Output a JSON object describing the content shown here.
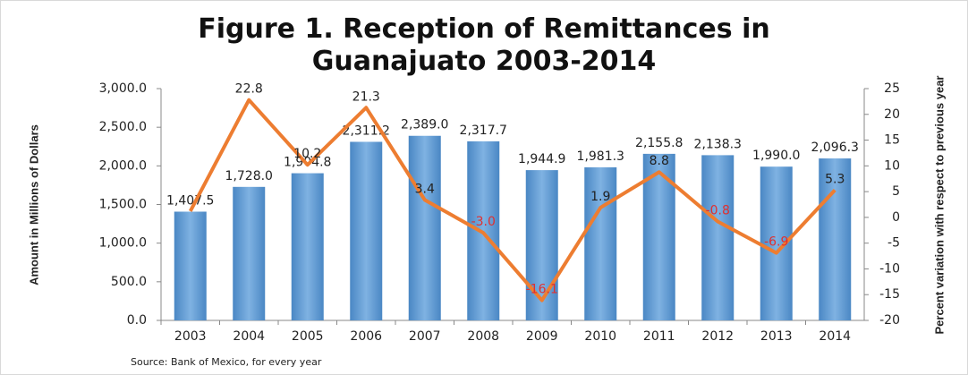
{
  "chart_data": {
    "type": "bar-line",
    "title": "Figure 1. Reception of Remittances in Guanajuato 2003-2014",
    "y_label": "Amount in Millions of Dollars",
    "y2_label": "Percent variation with respect to previous year",
    "source": "Source:  Bank of Mexico, for every year",
    "categories": [
      "2003",
      "2004",
      "2005",
      "2006",
      "2007",
      "2008",
      "2009",
      "2010",
      "2011",
      "2012",
      "2013",
      "2014"
    ],
    "series": [
      {
        "type": "bar",
        "color": "#5b9bd5",
        "values": [
          1407.5,
          1728.0,
          1904.8,
          2311.2,
          2389.0,
          2317.7,
          1944.9,
          1981.3,
          2155.8,
          2138.3,
          1990.0,
          2096.3
        ],
        "value_labels": [
          "1,407.5",
          "1,728.0",
          "1,904.8",
          "2,311.2",
          "2,389.0",
          "2,317.7",
          "1,944.9",
          "1,981.3",
          "2,155.8",
          "2,138.3",
          "1,990.0",
          "2,096.3"
        ]
      },
      {
        "type": "line",
        "axis": "y2",
        "color": "#ed7d31",
        "values": [
          1.2,
          22.8,
          10.2,
          21.3,
          3.4,
          -3.0,
          -16.1,
          1.9,
          8.8,
          -0.8,
          -6.9,
          5.3
        ],
        "value_labels": [
          null,
          "22.8",
          "10.2",
          "21.3",
          "3.4",
          "-3.0",
          "-16.1",
          "1.9",
          "8.8",
          "-0.8",
          "-6.9",
          "5.3"
        ]
      }
    ],
    "ylim": [
      0,
      3000
    ],
    "yticks": [
      {
        "value": 0,
        "label": "0.0"
      },
      {
        "value": 500,
        "label": "500.0"
      },
      {
        "value": 1000,
        "label": "1,000.0"
      },
      {
        "value": 1500,
        "label": "1,500.0"
      },
      {
        "value": 2000,
        "label": "2,000.0"
      },
      {
        "value": 2500,
        "label": "2,500.0"
      },
      {
        "value": 3000,
        "label": "3,000.0"
      }
    ],
    "y2lim": [
      -20,
      25
    ],
    "y2ticks": [
      -20,
      -15,
      -10,
      -5,
      0,
      5,
      10,
      15,
      20,
      25
    ]
  }
}
